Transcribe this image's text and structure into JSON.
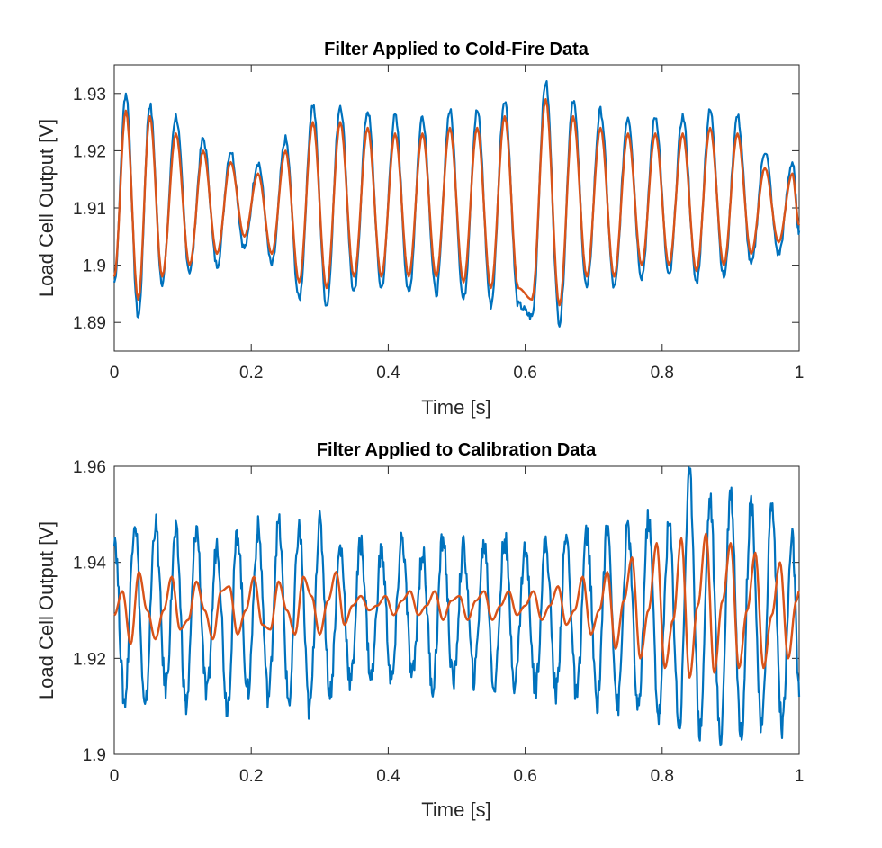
{
  "colors": {
    "raw": "#0072BD",
    "filtered": "#D95319",
    "axis": "#262626",
    "background": "#ffffff"
  },
  "chart_data": [
    {
      "type": "line",
      "title": "Filter Applied to Cold-Fire Data",
      "xlabel": "Time [s]",
      "ylabel": "Load Cell Output [V]",
      "xlim": [
        0,
        1
      ],
      "ylim": [
        1.885,
        1.935
      ],
      "xticks": [
        0,
        0.2,
        0.4,
        0.6,
        0.8,
        1
      ],
      "xtick_labels": [
        "0",
        "0.2",
        "0.4",
        "0.6",
        "0.8",
        "1"
      ],
      "yticks": [
        1.89,
        1.9,
        1.91,
        1.92,
        1.93
      ],
      "ytick_labels": [
        "1.89",
        "1.9",
        "1.91",
        "1.92",
        "1.93"
      ],
      "grid": false,
      "series": [
        {
          "role": "raw",
          "x": [
            0,
            0.017,
            0.035,
            0.052,
            0.07,
            0.09,
            0.11,
            0.13,
            0.15,
            0.17,
            0.19,
            0.21,
            0.23,
            0.25,
            0.27,
            0.29,
            0.31,
            0.33,
            0.35,
            0.37,
            0.39,
            0.41,
            0.43,
            0.45,
            0.47,
            0.49,
            0.51,
            0.53,
            0.55,
            0.57,
            0.59,
            0.61,
            0.63,
            0.65,
            0.67,
            0.69,
            0.71,
            0.73,
            0.75,
            0.77,
            0.79,
            0.81,
            0.83,
            0.85,
            0.87,
            0.89,
            0.91,
            0.93,
            0.95,
            0.97,
            0.99,
            1
          ],
          "y": [
            1.897,
            1.93,
            1.891,
            1.928,
            1.897,
            1.926,
            1.899,
            1.922,
            1.9,
            1.92,
            1.903,
            1.918,
            1.9,
            1.922,
            1.894,
            1.928,
            1.893,
            1.928,
            1.895,
            1.927,
            1.896,
            1.926,
            1.895,
            1.926,
            1.895,
            1.927,
            1.894,
            1.927,
            1.893,
            1.929,
            1.893,
            1.891,
            1.932,
            1.89,
            1.929,
            1.896,
            1.927,
            1.896,
            1.926,
            1.898,
            1.926,
            1.898,
            1.926,
            1.897,
            1.927,
            1.898,
            1.926,
            1.9,
            1.92,
            1.902,
            1.918,
            1.906
          ]
        },
        {
          "role": "filtered",
          "x": [
            0,
            0.017,
            0.035,
            0.052,
            0.07,
            0.09,
            0.11,
            0.13,
            0.15,
            0.17,
            0.19,
            0.21,
            0.23,
            0.25,
            0.27,
            0.29,
            0.31,
            0.33,
            0.35,
            0.37,
            0.39,
            0.41,
            0.43,
            0.45,
            0.47,
            0.49,
            0.51,
            0.53,
            0.55,
            0.57,
            0.59,
            0.61,
            0.63,
            0.65,
            0.67,
            0.69,
            0.71,
            0.73,
            0.75,
            0.77,
            0.79,
            0.81,
            0.83,
            0.85,
            0.87,
            0.89,
            0.91,
            0.93,
            0.95,
            0.97,
            0.99,
            1
          ],
          "y": [
            1.898,
            1.927,
            1.894,
            1.926,
            1.898,
            1.923,
            1.9,
            1.92,
            1.902,
            1.918,
            1.905,
            1.916,
            1.902,
            1.92,
            1.897,
            1.925,
            1.896,
            1.925,
            1.898,
            1.924,
            1.898,
            1.923,
            1.898,
            1.923,
            1.898,
            1.924,
            1.897,
            1.924,
            1.896,
            1.926,
            1.896,
            1.894,
            1.929,
            1.893,
            1.926,
            1.898,
            1.924,
            1.898,
            1.923,
            1.9,
            1.923,
            1.9,
            1.923,
            1.899,
            1.924,
            1.9,
            1.923,
            1.902,
            1.917,
            1.904,
            1.916,
            1.907
          ]
        }
      ]
    },
    {
      "type": "line",
      "title": "Filter Applied to Calibration Data",
      "xlabel": "Time [s]",
      "ylabel": "Load Cell Output [V]",
      "xlim": [
        0,
        1
      ],
      "ylim": [
        1.9,
        1.96
      ],
      "xticks": [
        0,
        0.2,
        0.4,
        0.6,
        0.8,
        1
      ],
      "xtick_labels": [
        "0",
        "0.2",
        "0.4",
        "0.6",
        "0.8",
        "1"
      ],
      "yticks": [
        1.9,
        1.92,
        1.94,
        1.96
      ],
      "ytick_labels": [
        "1.9",
        "1.92",
        "1.94",
        "1.96"
      ],
      "grid": false,
      "series": [
        {
          "role": "raw",
          "x": [
            0,
            0.015,
            0.03,
            0.045,
            0.06,
            0.075,
            0.09,
            0.105,
            0.12,
            0.135,
            0.15,
            0.165,
            0.18,
            0.195,
            0.21,
            0.225,
            0.24,
            0.255,
            0.27,
            0.285,
            0.3,
            0.315,
            0.33,
            0.345,
            0.36,
            0.375,
            0.39,
            0.405,
            0.42,
            0.435,
            0.45,
            0.465,
            0.48,
            0.495,
            0.51,
            0.525,
            0.54,
            0.555,
            0.57,
            0.585,
            0.6,
            0.615,
            0.63,
            0.645,
            0.66,
            0.675,
            0.69,
            0.705,
            0.72,
            0.735,
            0.75,
            0.765,
            0.78,
            0.795,
            0.81,
            0.825,
            0.84,
            0.855,
            0.87,
            0.885,
            0.9,
            0.915,
            0.93,
            0.945,
            0.96,
            0.975,
            0.99,
            1
          ],
          "y": [
            1.946,
            1.911,
            1.949,
            1.909,
            1.948,
            1.914,
            1.946,
            1.91,
            1.947,
            1.912,
            1.944,
            1.91,
            1.946,
            1.913,
            1.947,
            1.912,
            1.948,
            1.911,
            1.947,
            1.909,
            1.948,
            1.913,
            1.943,
            1.915,
            1.944,
            1.916,
            1.942,
            1.915,
            1.945,
            1.916,
            1.942,
            1.914,
            1.945,
            1.915,
            1.943,
            1.916,
            1.944,
            1.914,
            1.945,
            1.915,
            1.943,
            1.914,
            1.944,
            1.913,
            1.945,
            1.912,
            1.946,
            1.911,
            1.947,
            1.91,
            1.947,
            1.909,
            1.949,
            1.908,
            1.948,
            1.906,
            1.958,
            1.905,
            1.953,
            1.903,
            1.955,
            1.904,
            1.953,
            1.905,
            1.952,
            1.906,
            1.945,
            1.912
          ]
        },
        {
          "role": "filtered",
          "x": [
            0,
            0.012,
            0.024,
            0.036,
            0.048,
            0.06,
            0.072,
            0.084,
            0.096,
            0.108,
            0.12,
            0.132,
            0.144,
            0.156,
            0.168,
            0.18,
            0.192,
            0.204,
            0.216,
            0.228,
            0.24,
            0.252,
            0.264,
            0.276,
            0.288,
            0.3,
            0.312,
            0.324,
            0.336,
            0.348,
            0.36,
            0.372,
            0.384,
            0.396,
            0.408,
            0.42,
            0.432,
            0.444,
            0.456,
            0.468,
            0.48,
            0.492,
            0.504,
            0.516,
            0.528,
            0.54,
            0.552,
            0.564,
            0.576,
            0.588,
            0.6,
            0.612,
            0.624,
            0.636,
            0.648,
            0.66,
            0.672,
            0.684,
            0.696,
            0.708,
            0.72,
            0.732,
            0.744,
            0.756,
            0.768,
            0.78,
            0.792,
            0.804,
            0.816,
            0.828,
            0.84,
            0.852,
            0.864,
            0.876,
            0.888,
            0.9,
            0.912,
            0.924,
            0.936,
            0.948,
            0.96,
            0.972,
            0.984,
            0.996,
            1
          ],
          "y": [
            1.929,
            1.934,
            1.923,
            1.938,
            1.93,
            1.924,
            1.93,
            1.937,
            1.926,
            1.928,
            1.936,
            1.93,
            1.924,
            1.934,
            1.935,
            1.925,
            1.93,
            1.937,
            1.927,
            1.926,
            1.936,
            1.93,
            1.925,
            1.937,
            1.933,
            1.925,
            1.932,
            1.938,
            1.927,
            1.931,
            1.933,
            1.93,
            1.931,
            1.933,
            1.929,
            1.932,
            1.934,
            1.929,
            1.931,
            1.934,
            1.928,
            1.932,
            1.933,
            1.928,
            1.932,
            1.934,
            1.928,
            1.931,
            1.934,
            1.929,
            1.931,
            1.934,
            1.928,
            1.931,
            1.935,
            1.927,
            1.93,
            1.937,
            1.925,
            1.93,
            1.938,
            1.922,
            1.932,
            1.941,
            1.92,
            1.93,
            1.944,
            1.918,
            1.928,
            1.945,
            1.916,
            1.931,
            1.946,
            1.917,
            1.932,
            1.944,
            1.918,
            1.93,
            1.942,
            1.918,
            1.929,
            1.94,
            1.92,
            1.932,
            1.934
          ]
        }
      ]
    }
  ]
}
